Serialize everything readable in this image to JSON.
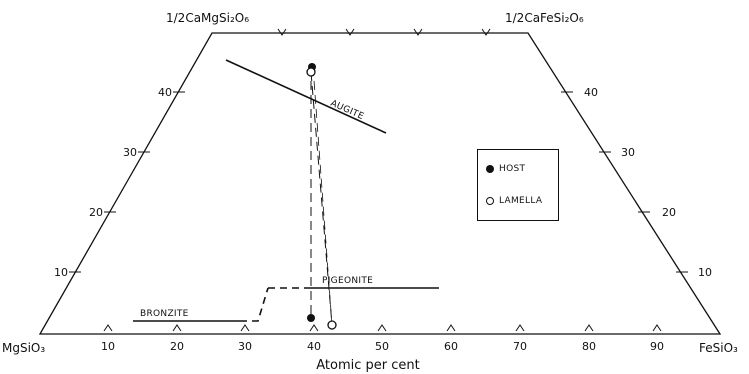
{
  "corners": {
    "top_left": "1/2CaMgSi₂O₆",
    "top_right": "1/2CaFeSi₂O₆",
    "bottom_left": "MgSiO₃",
    "bottom_right": "FeSiO₃"
  },
  "axis_label": "Atomic per cent",
  "bottom_ticks": [
    "10",
    "20",
    "30",
    "40",
    "50",
    "60",
    "70",
    "80",
    "90"
  ],
  "left_ticks": [
    "10",
    "20",
    "30",
    "40"
  ],
  "right_ticks": [
    "10",
    "20",
    "30",
    "40"
  ],
  "phases": {
    "augite": "AUGITE",
    "pigeonite": "PIGEONITE",
    "bronzite": "BRONZITE"
  },
  "legend": {
    "host": "HOST",
    "lamella": "LAMELLA"
  }
}
